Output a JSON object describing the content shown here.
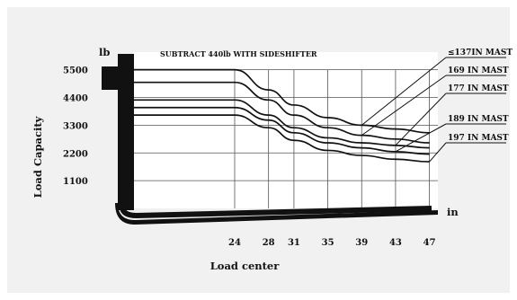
{
  "chart_data": {
    "type": "line",
    "y_unit": "lb",
    "x_unit": "in",
    "ylabel": "Load Capacity",
    "xlabel": "Load center",
    "note": "SUBTRACT 440lb WITH SIDESHIFTER",
    "y_ticks": [
      "5500",
      "4400",
      "3300",
      "2200",
      "1100"
    ],
    "y_tick_values": [
      5500,
      4400,
      3300,
      2200,
      1100
    ],
    "x_ticks": [
      "24",
      "28",
      "31",
      "35",
      "39",
      "43",
      "47"
    ],
    "x_tick_values": [
      24,
      28,
      31,
      35,
      39,
      43,
      47
    ],
    "xlim": [
      12,
      48
    ],
    "ylim": [
      0,
      6200
    ],
    "grid": true,
    "series": [
      {
        "name": "≤137IN MAST",
        "x": [
          12,
          24,
          28,
          31,
          35,
          39,
          43,
          47
        ],
        "y": [
          5500,
          5500,
          4700,
          4100,
          3600,
          3300,
          3150,
          3000
        ]
      },
      {
        "name": "169 IN MAST",
        "x": [
          12,
          24,
          28,
          31,
          35,
          39,
          43,
          47
        ],
        "y": [
          5000,
          5000,
          4300,
          3700,
          3200,
          2900,
          2750,
          2600
        ]
      },
      {
        "name": "177 IN MAST",
        "x": [
          12,
          24,
          28,
          31,
          35,
          39,
          43,
          47
        ],
        "y": [
          4300,
          4300,
          3700,
          3200,
          2800,
          2600,
          2500,
          2400
        ]
      },
      {
        "name": "189 IN MAST",
        "x": [
          12,
          24,
          28,
          31,
          35,
          39,
          43,
          47
        ],
        "y": [
          4000,
          4000,
          3500,
          3000,
          2600,
          2400,
          2250,
          2150
        ]
      },
      {
        "name": "197 IN MAST",
        "x": [
          12,
          24,
          28,
          31,
          35,
          39,
          43,
          47
        ],
        "y": [
          3700,
          3700,
          3200,
          2700,
          2300,
          2100,
          1950,
          1850
        ]
      }
    ]
  },
  "axes": {
    "y_unit_label": "lb",
    "x_unit_label": "in"
  },
  "colors": {
    "frame_background": "#f1f1f1",
    "plot_background": "#ffffff",
    "ink": "#111111"
  }
}
